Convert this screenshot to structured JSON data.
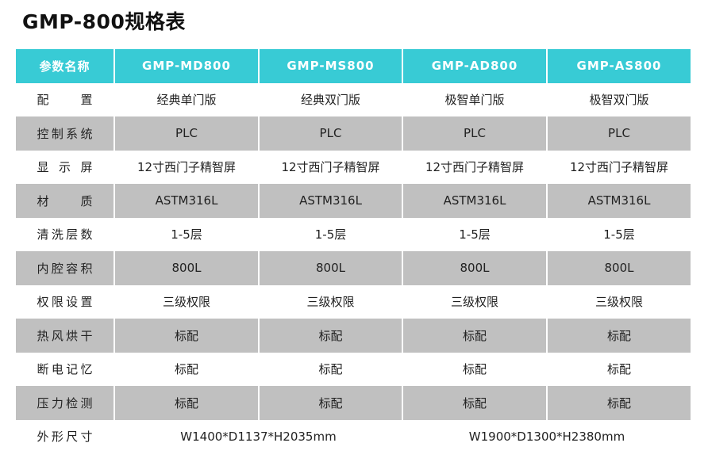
{
  "title": "GMP-800规格表",
  "colors": {
    "header": "#38cbd5",
    "stripe": "#c0c0c0"
  },
  "header": [
    "参数名称",
    "GMP-MD800",
    "GMP-MS800",
    "GMP-AD800",
    "GMP-AS800"
  ],
  "rows": [
    {
      "label": "配 置",
      "cells": [
        "经典单门版",
        "经典双门版",
        "极智单门版",
        "极智双门版"
      ]
    },
    {
      "label": "控制系统",
      "cells": [
        "PLC",
        "PLC",
        "PLC",
        "PLC"
      ]
    },
    {
      "label": "显 示 屏",
      "cells": [
        "12寸西门子精智屏",
        "12寸西门子精智屏",
        "12寸西门子精智屏",
        "12寸西门子精智屏"
      ]
    },
    {
      "label": "材 质",
      "cells": [
        "ASTM316L",
        "ASTM316L",
        "ASTM316L",
        "ASTM316L"
      ]
    },
    {
      "label": "清洗层数",
      "cells": [
        "1-5层",
        "1-5层",
        "1-5层",
        "1-5层"
      ]
    },
    {
      "label": "内腔容积",
      "cells": [
        "800L",
        "800L",
        "800L",
        "800L"
      ]
    },
    {
      "label": "权限设置",
      "cells": [
        "三级权限",
        "三级权限",
        "三级权限",
        "三级权限"
      ]
    },
    {
      "label": "热风烘干",
      "cells": [
        "标配",
        "标配",
        "标配",
        "标配"
      ]
    },
    {
      "label": "断电记忆",
      "cells": [
        "标配",
        "标配",
        "标配",
        "标配"
      ]
    },
    {
      "label": "压力检测",
      "cells": [
        "标配",
        "标配",
        "标配",
        "标配"
      ]
    }
  ],
  "dimensions": {
    "label": "外形尺寸",
    "md_ms": "W1400*D1137*H2035mm",
    "ad_as": "W1900*D1300*H2380mm"
  }
}
